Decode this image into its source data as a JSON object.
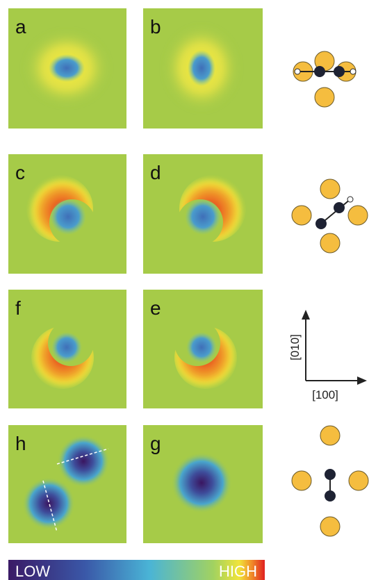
{
  "panels": [
    {
      "label": "a"
    },
    {
      "label": "b"
    },
    {
      "label": "c"
    },
    {
      "label": "d"
    },
    {
      "label": "f"
    },
    {
      "label": "e"
    },
    {
      "label": "h"
    },
    {
      "label": "g"
    }
  ],
  "axes": {
    "y": "[010]",
    "x": "[100]"
  },
  "colorbar": {
    "low": "LOW",
    "high": "HIGH"
  }
}
